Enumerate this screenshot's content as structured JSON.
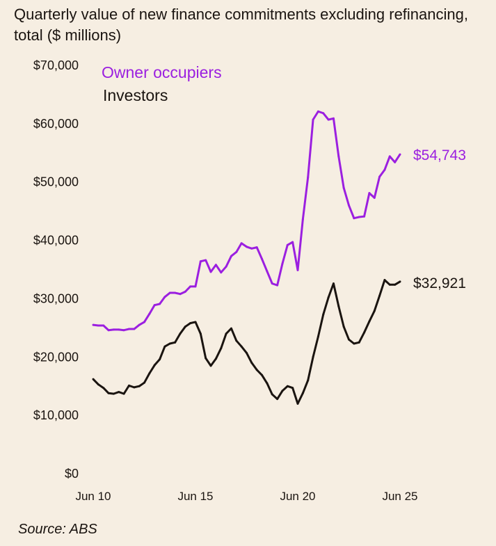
{
  "chart_data": {
    "type": "line",
    "title": "Quarterly value of new finance commitments excluding refinancing, total ($ millions)",
    "source": "Source: ABS",
    "xlabel": "",
    "ylabel": "",
    "ylim": [
      0,
      70000
    ],
    "yticks": [
      0,
      10000,
      20000,
      30000,
      40000,
      50000,
      60000,
      70000
    ],
    "ytick_labels": [
      "$0",
      "$10,000",
      "$20,000",
      "$30,000",
      "$40,000",
      "$50,000",
      "$60,000",
      "$70,000"
    ],
    "xtick_labels": [
      "Jun 10",
      "Jun 15",
      "Jun 20",
      "Jun 25"
    ],
    "grid": false,
    "legend_placement": "top-left",
    "x": [
      "Jun 10",
      "Sep 10",
      "Dec 10",
      "Mar 11",
      "Jun 11",
      "Sep 11",
      "Dec 11",
      "Mar 12",
      "Jun 12",
      "Sep 12",
      "Dec 12",
      "Mar 13",
      "Jun 13",
      "Sep 13",
      "Dec 13",
      "Mar 14",
      "Jun 14",
      "Sep 14",
      "Dec 14",
      "Mar 15",
      "Jun 15",
      "Sep 15",
      "Dec 15",
      "Mar 16",
      "Jun 16",
      "Sep 16",
      "Dec 16",
      "Mar 17",
      "Jun 17",
      "Sep 17",
      "Dec 17",
      "Mar 18",
      "Jun 18",
      "Sep 18",
      "Dec 18",
      "Mar 19",
      "Jun 19",
      "Sep 19",
      "Dec 19",
      "Mar 20",
      "Jun 20",
      "Sep 20",
      "Dec 20",
      "Mar 21",
      "Jun 21",
      "Sep 21",
      "Dec 21",
      "Mar 22",
      "Jun 22",
      "Sep 22",
      "Dec 22",
      "Mar 23",
      "Jun 23",
      "Sep 23",
      "Dec 23",
      "Mar 24",
      "Jun 24",
      "Sep 24",
      "Dec 24",
      "Mar 25",
      "Jun 25"
    ],
    "series": [
      {
        "name": "Owner occupiers",
        "color": "#9b1fe0",
        "end_label": "$54,743",
        "values": [
          25500,
          25400,
          25400,
          24600,
          24700,
          24700,
          24600,
          24800,
          24800,
          25500,
          26000,
          27400,
          28900,
          29100,
          30300,
          31000,
          31000,
          30800,
          31200,
          32100,
          32100,
          36400,
          36600,
          34600,
          35800,
          34500,
          35500,
          37300,
          38000,
          39500,
          38900,
          38600,
          38800,
          36800,
          34700,
          32600,
          32300,
          36000,
          39200,
          39700,
          34900,
          43600,
          50800,
          60700,
          62100,
          61800,
          60700,
          60900,
          54400,
          49000,
          46000,
          43800,
          44000,
          44100,
          48100,
          47300,
          50900,
          52100,
          54400,
          53400,
          54743
        ]
      },
      {
        "name": "Investors",
        "color": "#1a1410",
        "end_label": "$32,921",
        "values": [
          16200,
          15300,
          14700,
          13800,
          13700,
          14000,
          13700,
          15100,
          14800,
          15000,
          15600,
          17200,
          18600,
          19600,
          21800,
          22300,
          22500,
          24000,
          25200,
          25800,
          26000,
          24000,
          19800,
          18500,
          19700,
          21500,
          24000,
          24900,
          22800,
          21800,
          20700,
          19000,
          17800,
          16900,
          15500,
          13600,
          12800,
          14200,
          15000,
          14700,
          12000,
          13800,
          16000,
          20000,
          23500,
          27300,
          30200,
          32600,
          28700,
          25200,
          23000,
          22300,
          22500,
          24200,
          26100,
          27900,
          30500,
          33200,
          32400,
          32400,
          32921
        ]
      }
    ]
  }
}
